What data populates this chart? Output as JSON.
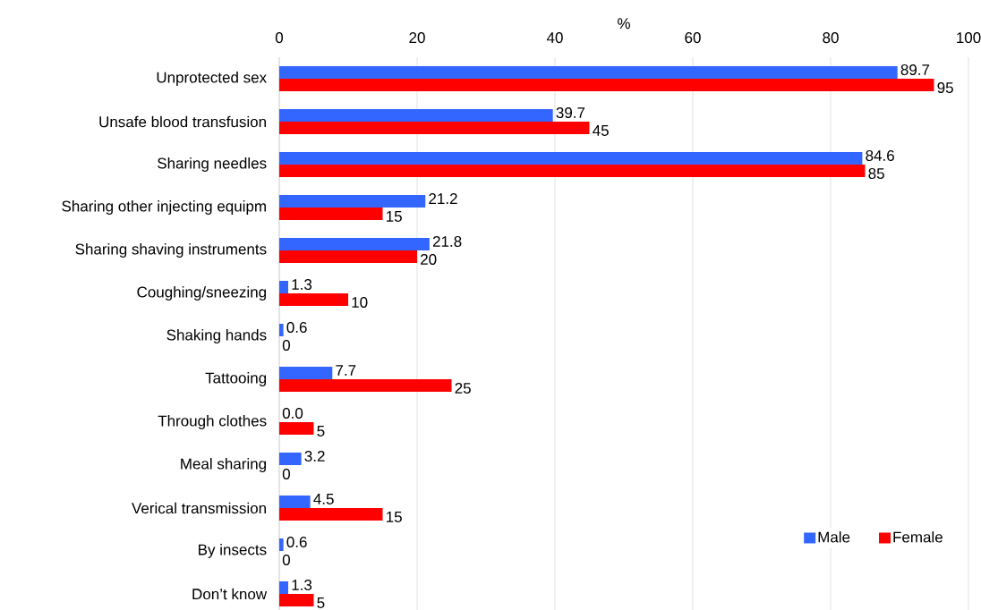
{
  "chart_data": {
    "type": "bar",
    "orientation": "horizontal",
    "xlabel": "%",
    "categories": [
      "Unprotected sex",
      "Unsafe blood transfusion",
      "Sharing needles",
      "Sharing other injecting equipm",
      "Sharing shaving instruments",
      "Coughing/sneezing",
      "Shaking hands",
      "Tattooing",
      "Through clothes",
      "Meal sharing",
      "Verical transmission",
      "By insects",
      "Don’t know"
    ],
    "series": [
      {
        "name": "Male",
        "color": "#3366ff",
        "values": [
          89.7,
          39.7,
          84.6,
          21.2,
          21.8,
          1.3,
          0.6,
          7.7,
          0.0,
          3.2,
          4.5,
          0.6,
          1.3
        ],
        "value_labels": [
          "89.7",
          "39.7",
          "84.6",
          "21.2",
          "21.8",
          "1.3",
          "0.6",
          "7.7",
          "0.0",
          "3.2",
          "4.5",
          "0.6",
          "1.3"
        ]
      },
      {
        "name": "Female",
        "color": "#ff0000",
        "values": [
          95,
          45,
          85,
          15,
          20,
          10,
          0,
          25,
          5,
          0,
          15,
          0,
          5
        ],
        "value_labels": [
          "95",
          "45",
          "85",
          "15",
          "20",
          "10",
          "0",
          "25",
          "5",
          "0",
          "15",
          "0",
          "5"
        ]
      }
    ],
    "xlim": [
      0,
      100
    ],
    "xticks": [
      0,
      20,
      40,
      60,
      80,
      100
    ],
    "grid": "x",
    "legend": "bottom right"
  }
}
